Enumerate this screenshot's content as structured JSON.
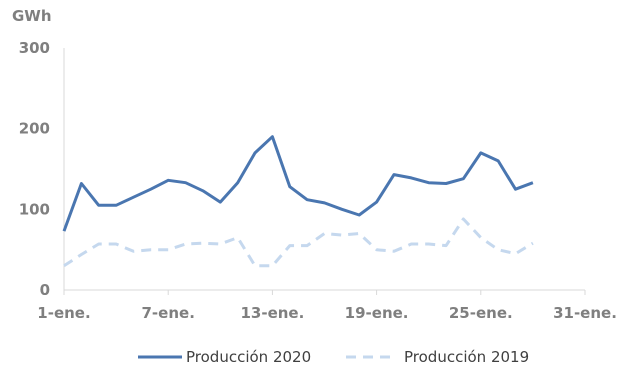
{
  "chart_data": {
    "type": "line",
    "unit_label": "GWh",
    "ylim": [
      0,
      300
    ],
    "y_ticks": [
      0,
      100,
      200,
      300
    ],
    "x_range": [
      1,
      31
    ],
    "x_ticks": [
      {
        "day": 1,
        "label": "1-ene."
      },
      {
        "day": 7,
        "label": "7-ene."
      },
      {
        "day": 13,
        "label": "13-ene."
      },
      {
        "day": 19,
        "label": "19-ene."
      },
      {
        "day": 25,
        "label": "25-ene."
      },
      {
        "day": 31,
        "label": "31-ene."
      }
    ],
    "grid": false,
    "legend_position": "bottom",
    "series": [
      {
        "name": "Producción 2020",
        "color": "#4a76b0",
        "style": "solid",
        "x": [
          1,
          2,
          3,
          4,
          5,
          6,
          7,
          8,
          9,
          10,
          11,
          12,
          13,
          14,
          15,
          16,
          17,
          18,
          19,
          20,
          21,
          22,
          23,
          24,
          25,
          26,
          27,
          28
        ],
        "values": [
          73,
          132,
          105,
          105,
          115,
          125,
          136,
          133,
          123,
          109,
          133,
          170,
          190,
          128,
          112,
          108,
          100,
          93,
          109,
          143,
          139,
          133,
          132,
          138,
          170,
          160,
          125,
          133
        ]
      },
      {
        "name": "Producción 2019",
        "color": "#c5d8ee",
        "style": "dashed",
        "x": [
          1,
          2,
          3,
          4,
          5,
          6,
          7,
          8,
          9,
          10,
          11,
          12,
          13,
          14,
          15,
          16,
          17,
          18,
          19,
          20,
          21,
          22,
          23,
          24,
          25,
          26,
          27,
          28
        ],
        "values": [
          30,
          44,
          57,
          57,
          48,
          50,
          50,
          57,
          58,
          57,
          65,
          30,
          30,
          55,
          55,
          70,
          68,
          70,
          50,
          48,
          57,
          57,
          55,
          88,
          65,
          50,
          45,
          58
        ]
      }
    ]
  }
}
